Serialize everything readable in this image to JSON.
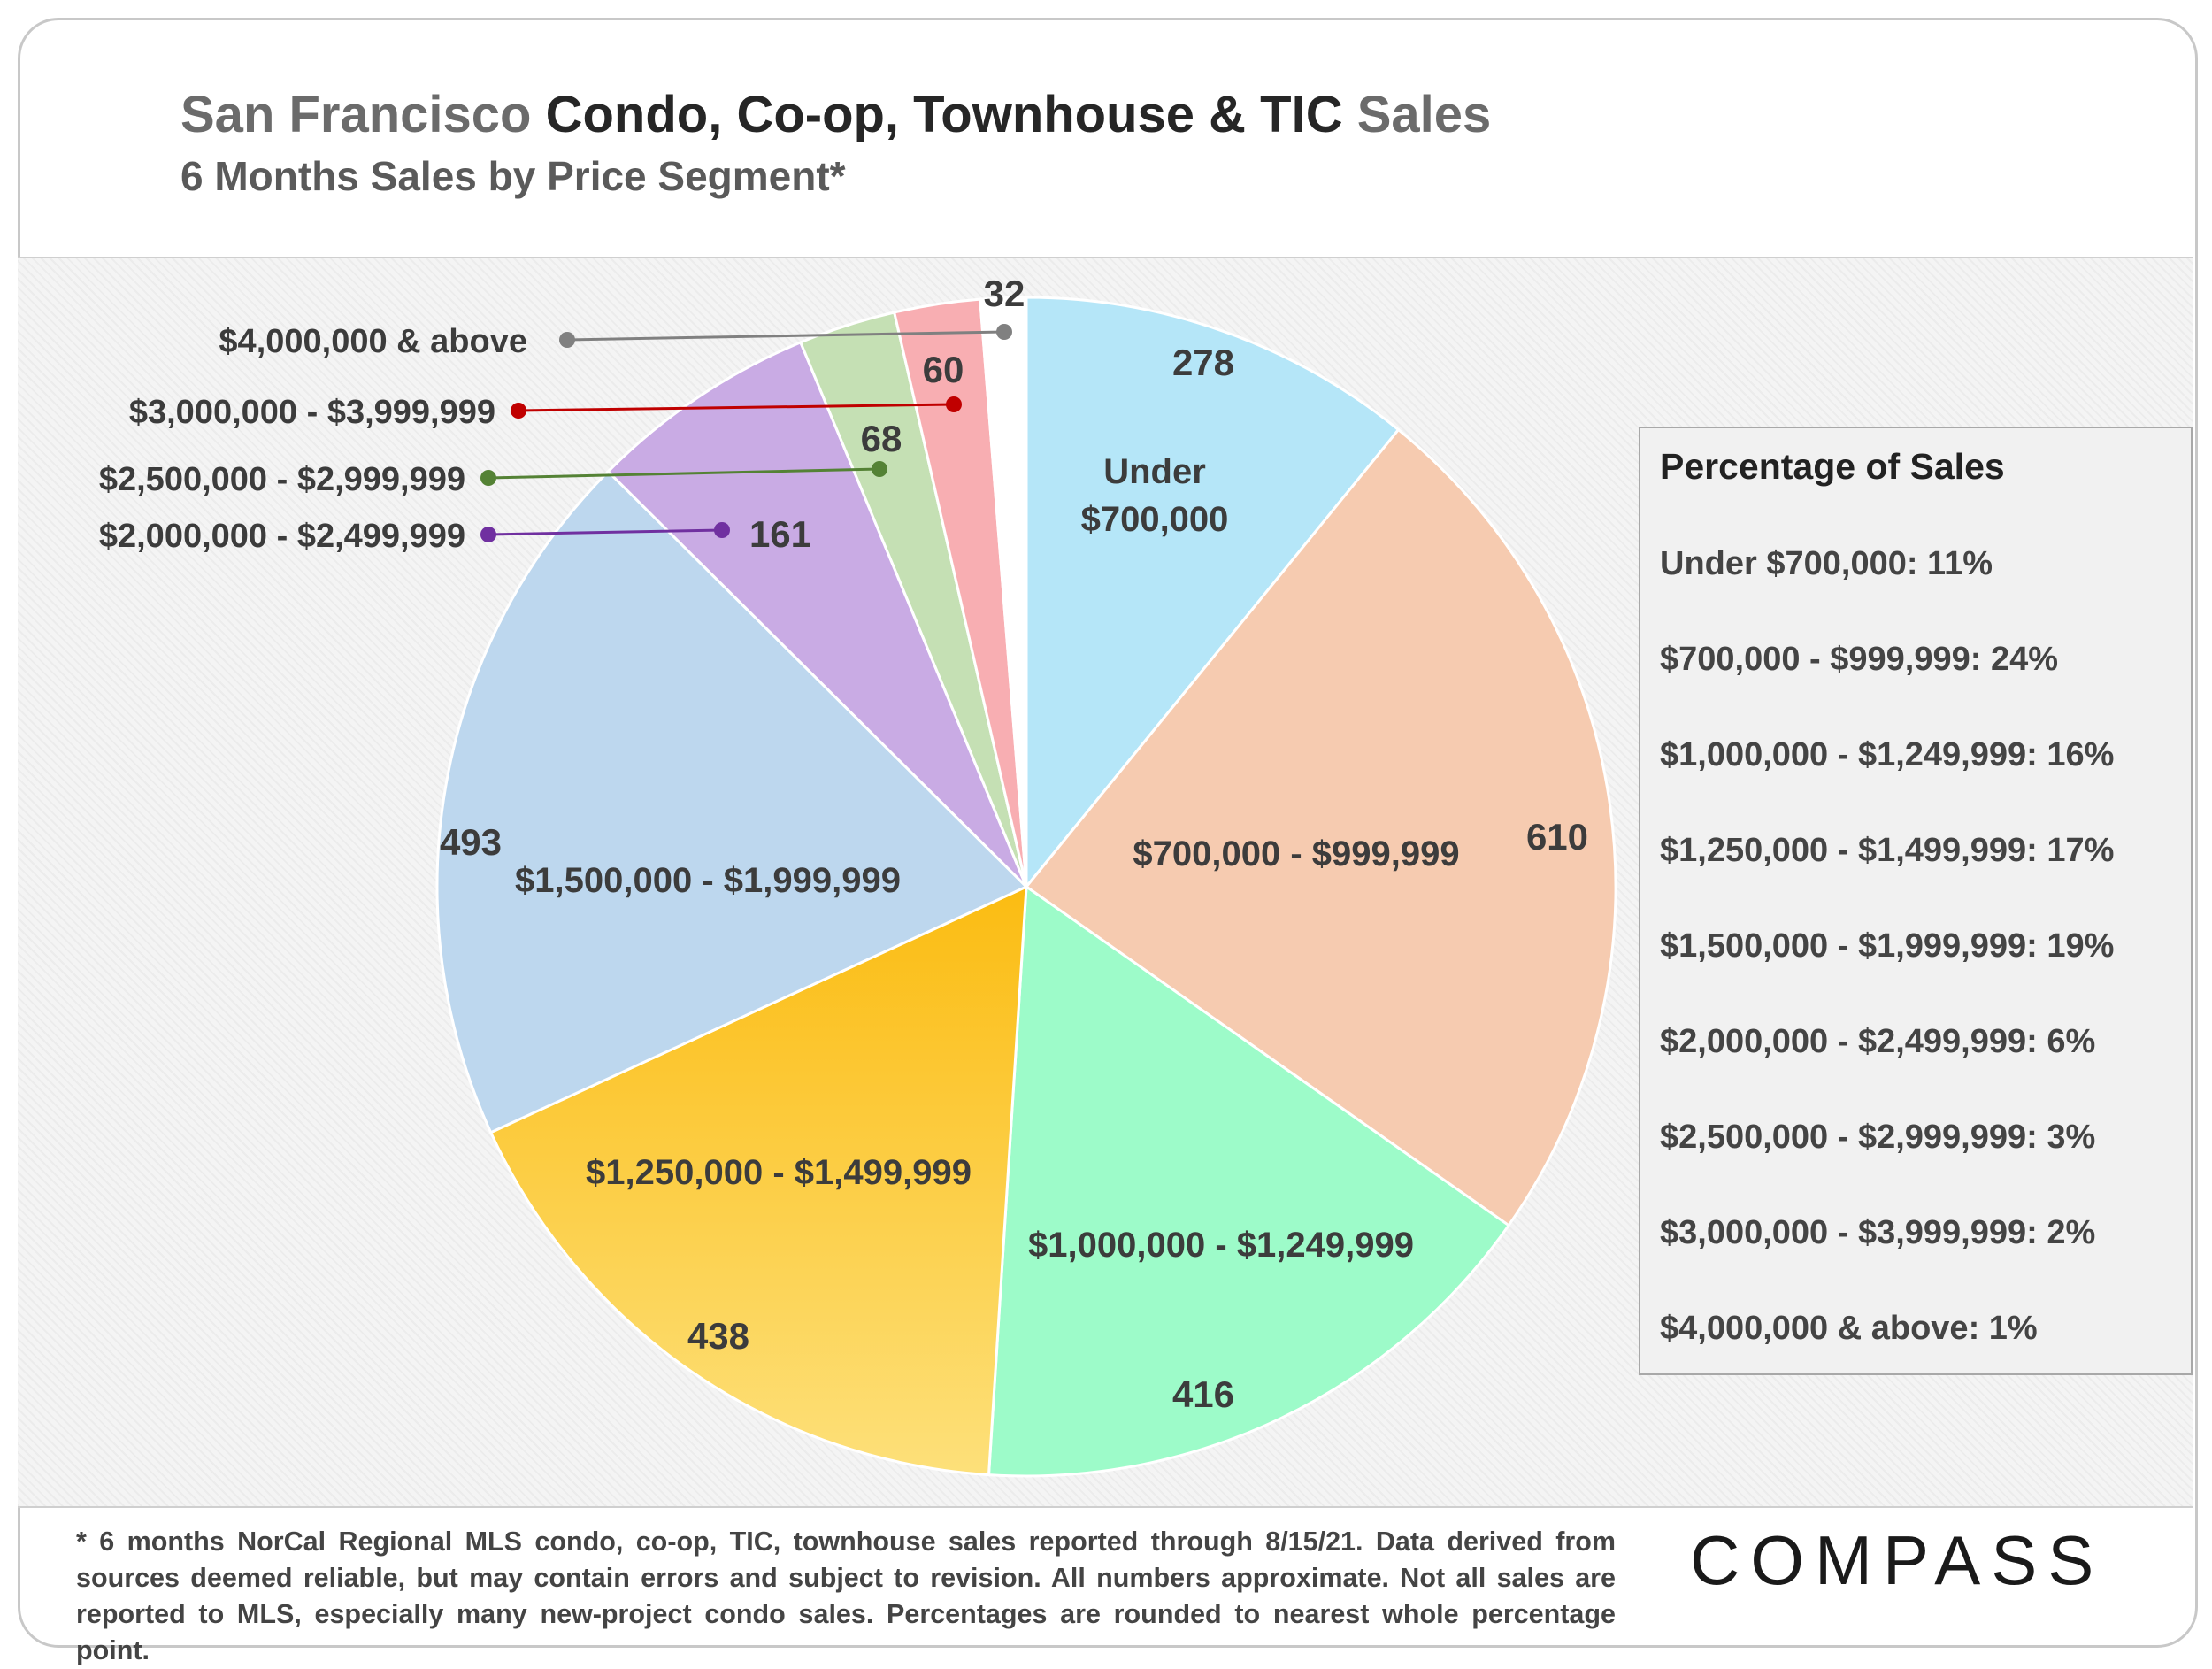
{
  "title": {
    "part1": "San Francisco",
    "part2": "Condo, Co-op, Townhouse & TIC",
    "part3": "Sales"
  },
  "subtitle": "6 Months Sales by Price Segment*",
  "chart_data": {
    "type": "pie",
    "title": "San Francisco Condo, Co-op, Townhouse & TIC Sales",
    "subtitle": "6 Months Sales by Price Segment*",
    "slices": [
      {
        "label": "Under $700,000",
        "label_lines": [
          "Under",
          "$700,000"
        ],
        "value": 278,
        "value_text": "278",
        "color": "#b5e6f8"
      },
      {
        "label": "$700,000 - $999,999",
        "value": 610,
        "value_text": "610",
        "color": "#f6cbb0"
      },
      {
        "label": "$1,000,000 - $1,249,999",
        "value": 416,
        "value_text": "416",
        "color": "#9dfbc9"
      },
      {
        "label": "$1,250,000 - $1,499,999",
        "value": 438,
        "value_text": "438",
        "color": "#fcc832"
      },
      {
        "label": "$1,500,000 - $1,999,999",
        "value": 493,
        "value_text": "493",
        "color": "#bdd7ee"
      },
      {
        "label": "$2,000,000 - $2,499,999",
        "value": 161,
        "value_text": "161",
        "color": "#c9abe4",
        "callout": true,
        "callout_color": "#7030a0"
      },
      {
        "label": "$2,500,000 - $2,999,999",
        "value": 68,
        "value_text": "68",
        "color": "#c5e0b4",
        "callout": true,
        "callout_color": "#548235"
      },
      {
        "label": "$3,000,000 - $3,999,999",
        "value": 60,
        "value_text": "60",
        "color": "#f8aeb2",
        "callout": true,
        "callout_color": "#c00000"
      },
      {
        "label": "$4,000,000 & above",
        "value": 32,
        "value_text": "32",
        "color": "#ffffff",
        "callout": true,
        "callout_color": "#808080"
      }
    ]
  },
  "legend": {
    "title": "Percentage of Sales",
    "entries": [
      "Under $700,000: 11%",
      "$700,000 - $999,999: 24%",
      "$1,000,000 - $1,249,999: 16%",
      "$1,250,000 - $1,499,999:  17%",
      "$1,500,000 - $1,999,999: 19%",
      "$2,000,000 - $2,499,999: 6%",
      "$2,500,000 - $2,999,999:  3%",
      "$3,000,000 - $3,999,999: 2%",
      "$4,000,000 & above:  1%"
    ]
  },
  "footnote": "* 6 months NorCal Regional MLS condo, co-op, TIC, townhouse sales reported through 8/15/21. Data derived from sources deemed reliable, but may contain errors and subject to revision. All numbers approximate. Not all sales are reported to MLS, especially many new-project condo sales. Percentages are rounded to nearest whole percentage point.",
  "logo": "COMPASS"
}
